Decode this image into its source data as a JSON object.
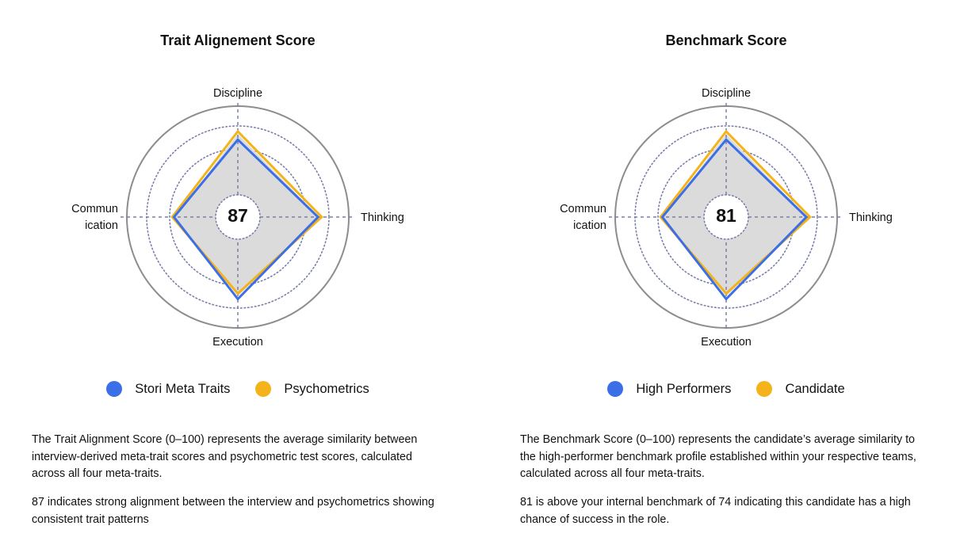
{
  "colors": {
    "blue": "#3b6fe8",
    "yellow": "#f5b31b",
    "fill": "#dcdbdb",
    "ring": "#8d8c91",
    "grid": "#7a7fa8"
  },
  "charts": [
    {
      "title": "Trait Alignement Score",
      "center_score": "87",
      "legend": [
        {
          "label": "Stori Meta Traits",
          "color": "blue"
        },
        {
          "label": "Psychometrics",
          "color": "yellow"
        }
      ],
      "axes": {
        "top": "Discipline",
        "right": "Thinking",
        "bottom": "Execution",
        "left_line1": "Commun",
        "left_line2": "ication"
      },
      "paragraph1": "The Trait Alignment Score (0–100) represents the average similarity between interview-derived meta-trait scores and psychometric test scores, calculated across all four meta-traits.",
      "paragraph2": "87 indicates strong alignment between the interview and psychometrics showing consistent trait patterns"
    },
    {
      "title": "Benchmark Score",
      "center_score": "81",
      "legend": [
        {
          "label": "High Performers",
          "color": "blue"
        },
        {
          "label": "Candidate",
          "color": "yellow"
        }
      ],
      "axes": {
        "top": "Discipline",
        "right": "Thinking",
        "bottom": "Execution",
        "left_line1": "Commun",
        "left_line2": "ication"
      },
      "paragraph1": "The Benchmark Score (0–100) represents the candidate’s average similarity to the high-performer benchmark profile established within your respective teams, calculated across all four meta-traits.",
      "paragraph2": "81 is above your internal benchmark of 74 indicating this candidate has a high chance of success in the role."
    }
  ],
  "chart_data": [
    {
      "type": "radar",
      "title": "Trait Alignement Score",
      "categories": [
        "Discipline",
        "Thinking",
        "Execution",
        "Communication"
      ],
      "series": [
        {
          "name": "Stori Meta Traits",
          "values": [
            85,
            88,
            90,
            70
          ]
        },
        {
          "name": "Psychometrics",
          "values": [
            94,
            92,
            84,
            72
          ]
        }
      ],
      "range": [
        0,
        100
      ]
    },
    {
      "type": "radar",
      "title": "Benchmark Score",
      "categories": [
        "Discipline",
        "Thinking",
        "Execution",
        "Communication"
      ],
      "series": [
        {
          "name": "High Performers",
          "values": [
            85,
            88,
            90,
            70
          ]
        },
        {
          "name": "Candidate",
          "values": [
            94,
            92,
            84,
            72
          ]
        }
      ],
      "range": [
        0,
        100
      ]
    }
  ]
}
